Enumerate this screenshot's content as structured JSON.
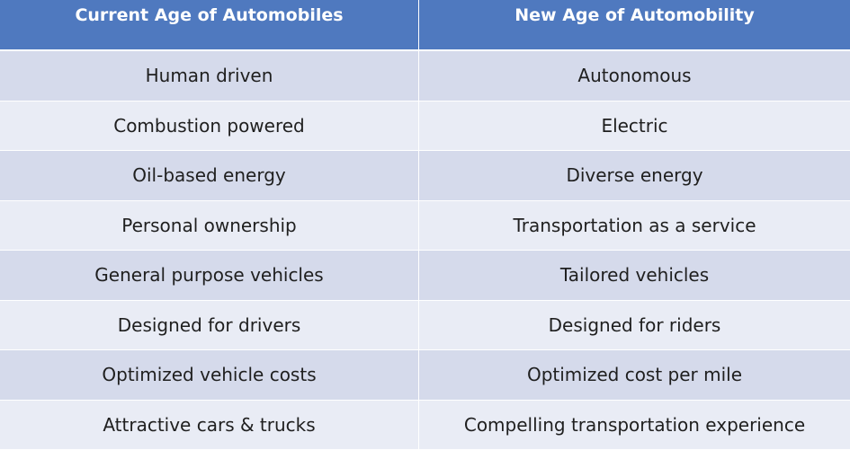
{
  "table": {
    "headers": [
      "Current Age of Automobiles",
      "New Age of Automobility"
    ],
    "rows": [
      [
        "Human driven",
        "Autonomous"
      ],
      [
        "Combustion powered",
        "Electric"
      ],
      [
        "Oil-based energy",
        "Diverse energy"
      ],
      [
        "Personal ownership",
        "Transportation as a service"
      ],
      [
        "General purpose vehicles",
        "Tailored vehicles"
      ],
      [
        "Designed for drivers",
        "Designed for riders"
      ],
      [
        "Optimized vehicle costs",
        "Optimized cost per mile"
      ],
      [
        "Attractive cars & trucks",
        "Compelling transportation experience"
      ]
    ]
  },
  "colors": {
    "header_bg": "#4f79bf",
    "row_odd_bg": "#d5daeb",
    "row_even_bg": "#e9ecf5",
    "header_text": "#ffffff",
    "body_text": "#1f1f1f"
  }
}
